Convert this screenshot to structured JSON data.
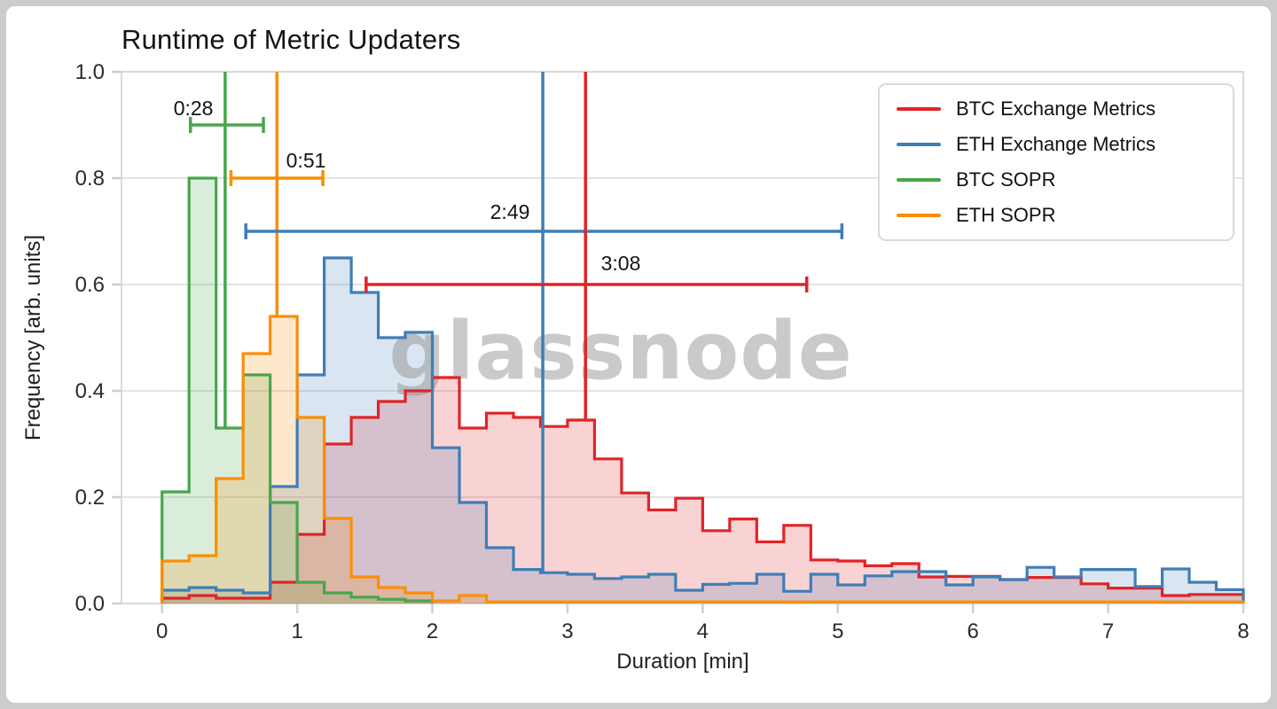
{
  "figure": {
    "title": "Runtime of Metric Updaters",
    "xlabel": "Duration [min]",
    "ylabel": "Frequency [arb. units]",
    "watermark": "glassnode"
  },
  "style": {
    "frame": "#cccccc",
    "background": "#ffffff",
    "gridline": "#e4e4e4",
    "spine": "#d9d9d9",
    "tick": "#cfcfcf",
    "tick_text": "#2b2b2b",
    "annotation_text": "#141414",
    "watermark_color": "#8a8a8a",
    "legend_border": "#dadada"
  },
  "chart_data": {
    "type": "step-histogram",
    "title": "Runtime of Metric Updaters",
    "xlabel": "Duration [min]",
    "ylabel": "Frequency [arb. units]",
    "xlim": [
      -0.3,
      8.0
    ],
    "ylim": [
      0.0,
      1.0
    ],
    "x_ticks": [
      0,
      1,
      2,
      3,
      4,
      5,
      6,
      7,
      8
    ],
    "y_ticks": [
      0.0,
      0.2,
      0.4,
      0.6,
      0.8,
      1.0
    ],
    "grid": "horizontal",
    "legend_position": "top-right",
    "bin_start": 0.0,
    "bin_width": 0.2,
    "fill_opacity": 0.2,
    "series": [
      {
        "name": "BTC Exchange Metrics",
        "color": "#e02427",
        "values": [
          0.01,
          0.015,
          0.01,
          0.01,
          0.04,
          0.13,
          0.3,
          0.35,
          0.38,
          0.4,
          0.425,
          0.33,
          0.358,
          0.35,
          0.333,
          0.345,
          0.272,
          0.208,
          0.176,
          0.198,
          0.137,
          0.159,
          0.116,
          0.147,
          0.082,
          0.08,
          0.071,
          0.075,
          0.05,
          0.051,
          0.051,
          0.045,
          0.049,
          0.049,
          0.037,
          0.029,
          0.029,
          0.015,
          0.017,
          0.017
        ]
      },
      {
        "name": "ETH Exchange Metrics",
        "color": "#3f7eb5",
        "values": [
          0.025,
          0.03,
          0.025,
          0.02,
          0.22,
          0.43,
          0.65,
          0.585,
          0.5,
          0.51,
          0.293,
          0.19,
          0.105,
          0.064,
          0.058,
          0.055,
          0.047,
          0.05,
          0.055,
          0.025,
          0.036,
          0.038,
          0.055,
          0.023,
          0.055,
          0.035,
          0.052,
          0.06,
          0.06,
          0.035,
          0.05,
          0.045,
          0.068,
          0.05,
          0.064,
          0.064,
          0.032,
          0.065,
          0.04,
          0.026
        ]
      },
      {
        "name": "BTC SOPR",
        "color": "#48a64c",
        "values": [
          0.21,
          0.8,
          0.33,
          0.43,
          0.19,
          0.04,
          0.02,
          0.012,
          0.008,
          0.005
        ]
      },
      {
        "name": "ETH SOPR",
        "color": "#fb8e04",
        "values": [
          0.08,
          0.09,
          0.235,
          0.47,
          0.54,
          0.35,
          0.16,
          0.05,
          0.03,
          0.02,
          0.005,
          0.015,
          0.003,
          0.003,
          0.003,
          0.003,
          0.003,
          0.003,
          0.003,
          0.003,
          0.003,
          0.003,
          0.003,
          0.003,
          0.003,
          0.003,
          0.003,
          0.003,
          0.003,
          0.003,
          0.003,
          0.003,
          0.003,
          0.003,
          0.003,
          0.003,
          0.003,
          0.003,
          0.003,
          0.003
        ]
      }
    ],
    "mean_markers": [
      {
        "series": "BTC SOPR",
        "color": "#48a64c",
        "label": "0:28",
        "x_minutes": 0.467,
        "line_bottom": 0.33,
        "errorbar": {
          "y": 0.9,
          "x_lo": 0.21,
          "x_hi": 0.75
        },
        "label_x": 0.232,
        "label_y": 0.932
      },
      {
        "series": "ETH SOPR",
        "color": "#fb8e04",
        "label": "0:51",
        "x_minutes": 0.85,
        "line_bottom": 0.54,
        "errorbar": {
          "y": 0.8,
          "x_lo": 0.51,
          "x_hi": 1.19
        },
        "label_x": 1.065,
        "label_y": 0.833
      },
      {
        "series": "ETH Exchange Metrics",
        "color": "#3f7eb5",
        "label": "2:49",
        "x_minutes": 2.817,
        "line_bottom": 0.058,
        "errorbar": {
          "y": 0.7,
          "x_lo": 0.62,
          "x_hi": 5.03
        },
        "label_x": 2.574,
        "label_y": 0.737
      },
      {
        "series": "BTC Exchange Metrics",
        "color": "#e02427",
        "label": "3:08",
        "x_minutes": 3.133,
        "line_bottom": 0.345,
        "errorbar": {
          "y": 0.6,
          "x_lo": 1.51,
          "x_hi": 4.77
        },
        "label_x": 3.394,
        "label_y": 0.64
      }
    ]
  }
}
